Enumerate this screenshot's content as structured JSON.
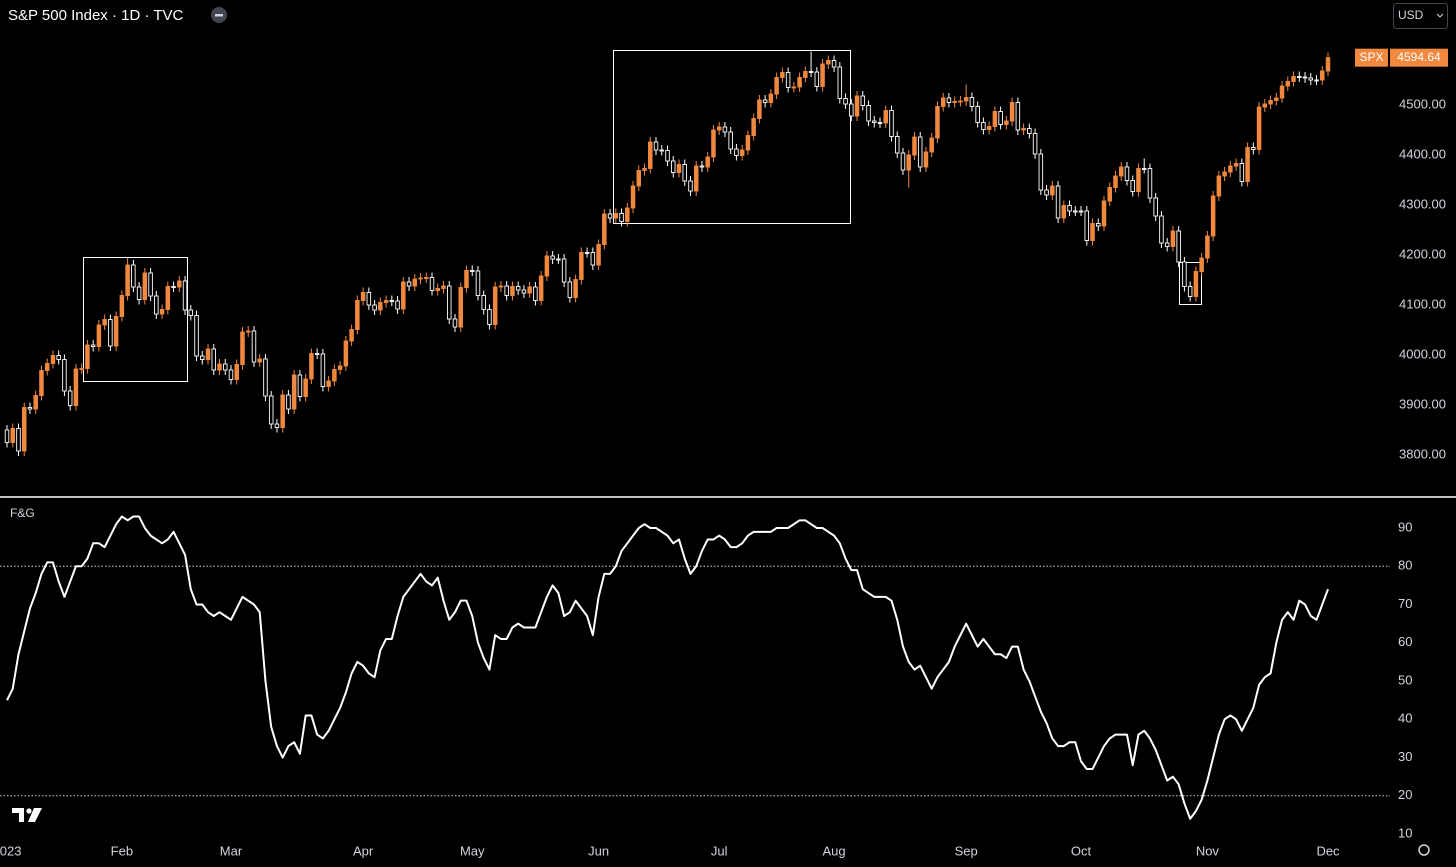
{
  "header": {
    "title": "S&P 500 Index · 1D · TVC",
    "currency": "USD"
  },
  "chart_data": [
    {
      "type": "candlestick",
      "name": "SPX",
      "last_label": "4594.64",
      "up_color": "#f0883e",
      "down_color": "#ffffff",
      "ylim": [
        3716,
        4710
      ],
      "yticks": [
        {
          "value": 3800,
          "label": "3800.00"
        },
        {
          "value": 3900,
          "label": "3900.00"
        },
        {
          "value": 4000,
          "label": "4000.00"
        },
        {
          "value": 4100,
          "label": "4100.00"
        },
        {
          "value": 4200,
          "label": "4200.00"
        },
        {
          "value": 4300,
          "label": "4300.00"
        },
        {
          "value": 4400,
          "label": "4400.00"
        },
        {
          "value": 4500,
          "label": "4500.00"
        }
      ],
      "x_labels": [
        {
          "value": 0,
          "label": "2023"
        },
        {
          "value": 20,
          "label": "Feb"
        },
        {
          "value": 39,
          "label": "Mar"
        },
        {
          "value": 62,
          "label": "Apr"
        },
        {
          "value": 81,
          "label": "May"
        },
        {
          "value": 103,
          "label": "Jun"
        },
        {
          "value": 124,
          "label": "Jul"
        },
        {
          "value": 144,
          "label": "Aug"
        },
        {
          "value": 167,
          "label": "Sep"
        },
        {
          "value": 187,
          "label": "Oct"
        },
        {
          "value": 209,
          "label": "Nov"
        },
        {
          "value": 230,
          "label": "Dec"
        }
      ],
      "open": [
        3850,
        3825,
        3853,
        3808,
        3895,
        3892,
        3919,
        3969,
        3983,
        3999,
        3991,
        3928,
        3899,
        3972,
        3973,
        4020,
        4017,
        4060,
        4071,
        4018,
        4077,
        4119,
        4180,
        4136,
        4111,
        4164,
        4118,
        4082,
        4091,
        4137,
        4136,
        4148,
        4090,
        4079,
        3998,
        3991,
        4012,
        3970,
        3982,
        3970,
        3951,
        3981,
        4046,
        4048,
        3986,
        3992,
        3918,
        3862,
        3855,
        3920,
        3892,
        3960,
        3917,
        3952,
        4003,
        4002,
        3937,
        3948,
        3971,
        3978,
        4028,
        4051,
        4109,
        4125,
        4100,
        4090,
        4105,
        4109,
        4108,
        4092,
        4146,
        4138,
        4152,
        4154,
        4155,
        4129,
        4133,
        4138,
        4072,
        4056,
        4135,
        4169,
        4168,
        4119,
        4091,
        4061,
        4136,
        4138,
        4119,
        4137,
        4130,
        4124,
        4136,
        4109,
        4158,
        4198,
        4192,
        4192,
        4146,
        4115,
        4151,
        4205,
        4205,
        4180,
        4221,
        4282,
        4274,
        4283,
        4267,
        4294,
        4338,
        4369,
        4373,
        4426,
        4410,
        4409,
        4388,
        4365,
        4381,
        4348,
        4328,
        4378,
        4376,
        4396,
        4450,
        4456,
        4446,
        4412,
        4399,
        4410,
        4439,
        4473,
        4510,
        4505,
        4522,
        4555,
        4565,
        4535,
        4536,
        4555,
        4567,
        4566,
        4537,
        4582,
        4589,
        4576,
        4513,
        4502,
        4478,
        4518,
        4499,
        4468,
        4465,
        4464,
        4489,
        4437,
        4404,
        4370,
        4400,
        4436,
        4376,
        4406,
        4434,
        4497,
        4514,
        4505,
        4507,
        4508,
        4515,
        4497,
        4465,
        4451,
        4457,
        4487,
        4461,
        4468,
        4505,
        4450,
        4453,
        4443,
        4402,
        4330,
        4320,
        4338,
        4274,
        4299,
        4288,
        4288,
        4288,
        4229,
        4263,
        4258,
        4308,
        4335,
        4358,
        4376,
        4349,
        4327,
        4373,
        4373,
        4314,
        4278,
        4224,
        4217,
        4248,
        4186,
        4137,
        4117,
        4167,
        4194,
        4238,
        4318,
        4358,
        4366,
        4378,
        4383,
        4347,
        4415,
        4411,
        4496,
        4502,
        4509,
        4514,
        4538,
        4547,
        4557,
        4556,
        4554,
        4550,
        4550,
        4568
      ],
      "high": [
        3860,
        3863,
        3863,
        3905,
        3905,
        3929,
        3979,
        3993,
        4009,
        4009,
        4001,
        3938,
        3982,
        3983,
        4030,
        4030,
        4070,
        4081,
        4081,
        4087,
        4129,
        4195,
        4190,
        4146,
        4174,
        4174,
        4128,
        4101,
        4147,
        4147,
        4158,
        4158,
        4100,
        4089,
        4008,
        4022,
        4022,
        3992,
        3992,
        3980,
        3991,
        4056,
        4058,
        4058,
        4002,
        4002,
        3928,
        3872,
        3930,
        3930,
        3970,
        3970,
        3962,
        4013,
        4013,
        4012,
        3958,
        3981,
        3988,
        4038,
        4061,
        4119,
        4135,
        4135,
        4110,
        4115,
        4119,
        4119,
        4118,
        4156,
        4156,
        4162,
        4164,
        4165,
        4165,
        4143,
        4148,
        4148,
        4082,
        4145,
        4179,
        4179,
        4178,
        4129,
        4101,
        4146,
        4148,
        4148,
        4147,
        4147,
        4140,
        4146,
        4146,
        4168,
        4208,
        4208,
        4202,
        4202,
        4156,
        4161,
        4215,
        4215,
        4215,
        4231,
        4292,
        4292,
        4293,
        4293,
        4304,
        4348,
        4379,
        4383,
        4436,
        4436,
        4420,
        4419,
        4398,
        4391,
        4391,
        4358,
        4388,
        4388,
        4406,
        4460,
        4466,
        4466,
        4456,
        4422,
        4420,
        4449,
        4483,
        4520,
        4520,
        4532,
        4565,
        4575,
        4575,
        4546,
        4565,
        4577,
        4607,
        4576,
        4592,
        4599,
        4599,
        4586,
        4523,
        4512,
        4528,
        4528,
        4509,
        4478,
        4475,
        4499,
        4499,
        4447,
        4414,
        4410,
        4446,
        4446,
        4416,
        4444,
        4507,
        4524,
        4524,
        4517,
        4518,
        4541,
        4525,
        4507,
        4475,
        4467,
        4497,
        4497,
        4478,
        4515,
        4515,
        4463,
        4463,
        4453,
        4412,
        4340,
        4348,
        4348,
        4309,
        4309,
        4298,
        4298,
        4298,
        4273,
        4273,
        4318,
        4345,
        4368,
        4386,
        4386,
        4359,
        4383,
        4393,
        4383,
        4324,
        4288,
        4234,
        4258,
        4258,
        4196,
        4147,
        4177,
        4204,
        4248,
        4328,
        4368,
        4376,
        4388,
        4393,
        4393,
        4425,
        4425,
        4506,
        4512,
        4519,
        4524,
        4548,
        4557,
        4567,
        4567,
        4566,
        4564,
        4560,
        4578,
        4605
      ],
      "low": [
        3815,
        3815,
        3798,
        3798,
        3882,
        3882,
        3909,
        3959,
        3973,
        3981,
        3918,
        3889,
        3889,
        3962,
        3963,
        4007,
        4007,
        4050,
        4008,
        4008,
        4067,
        4109,
        4126,
        4101,
        4101,
        4108,
        4072,
        4072,
        4081,
        4126,
        4126,
        4080,
        4069,
        3988,
        3981,
        3981,
        3960,
        3960,
        3960,
        3941,
        3941,
        3971,
        4036,
        3976,
        3976,
        3908,
        3852,
        3845,
        3845,
        3882,
        3882,
        3907,
        3907,
        3942,
        3992,
        3927,
        3927,
        3938,
        3961,
        3968,
        4018,
        4041,
        4099,
        4090,
        4080,
        4080,
        4095,
        4098,
        4082,
        4082,
        4128,
        4128,
        4142,
        4144,
        4119,
        4119,
        4123,
        4062,
        4046,
        4046,
        4125,
        4158,
        4109,
        4081,
        4051,
        4051,
        4126,
        4109,
        4109,
        4120,
        4114,
        4114,
        4099,
        4099,
        4148,
        4182,
        4182,
        4136,
        4105,
        4105,
        4141,
        4195,
        4170,
        4170,
        4211,
        4264,
        4264,
        4257,
        4257,
        4284,
        4328,
        4359,
        4363,
        4400,
        4399,
        4378,
        4355,
        4355,
        4338,
        4318,
        4318,
        4366,
        4366,
        4386,
        4440,
        4436,
        4402,
        4389,
        4389,
        4400,
        4429,
        4463,
        4495,
        4495,
        4512,
        4545,
        4525,
        4525,
        4526,
        4545,
        4556,
        4527,
        4527,
        4572,
        4566,
        4503,
        4492,
        4468,
        4468,
        4489,
        4458,
        4455,
        4454,
        4454,
        4427,
        4394,
        4360,
        4335,
        4390,
        4366,
        4366,
        4396,
        4424,
        4487,
        4495,
        4495,
        4497,
        4498,
        4487,
        4455,
        4441,
        4441,
        4447,
        4451,
        4451,
        4458,
        4440,
        4440,
        4433,
        4392,
        4320,
        4310,
        4310,
        4264,
        4264,
        4278,
        4278,
        4278,
        4219,
        4219,
        4248,
        4248,
        4298,
        4325,
        4348,
        4339,
        4317,
        4317,
        4363,
        4304,
        4268,
        4214,
        4207,
        4207,
        4176,
        4127,
        4107,
        4107,
        4157,
        4184,
        4228,
        4308,
        4348,
        4356,
        4368,
        4337,
        4337,
        4401,
        4401,
        4486,
        4492,
        4499,
        4504,
        4528,
        4537,
        4546,
        4544,
        4540,
        4540,
        4540,
        4558
      ],
      "close": [
        3825,
        3853,
        3808,
        3895,
        3892,
        3919,
        3969,
        3983,
        3999,
        3991,
        3928,
        3899,
        3972,
        3973,
        4020,
        4017,
        4060,
        4071,
        4018,
        4077,
        4119,
        4180,
        4136,
        4111,
        4164,
        4118,
        4082,
        4091,
        4137,
        4136,
        4148,
        4090,
        4079,
        3998,
        3991,
        4012,
        3970,
        3982,
        3970,
        3951,
        3981,
        4046,
        4048,
        3986,
        3992,
        3918,
        3862,
        3855,
        3920,
        3892,
        3960,
        3917,
        3952,
        4003,
        4002,
        3937,
        3948,
        3971,
        3978,
        4028,
        4051,
        4109,
        4125,
        4100,
        4090,
        4105,
        4109,
        4108,
        4092,
        4146,
        4138,
        4152,
        4154,
        4155,
        4129,
        4133,
        4138,
        4072,
        4056,
        4135,
        4169,
        4168,
        4119,
        4091,
        4061,
        4136,
        4138,
        4119,
        4137,
        4130,
        4124,
        4136,
        4109,
        4158,
        4198,
        4192,
        4192,
        4146,
        4115,
        4151,
        4205,
        4205,
        4180,
        4221,
        4282,
        4274,
        4283,
        4267,
        4294,
        4338,
        4369,
        4373,
        4426,
        4410,
        4409,
        4388,
        4365,
        4381,
        4348,
        4328,
        4378,
        4376,
        4396,
        4450,
        4456,
        4446,
        4412,
        4399,
        4410,
        4439,
        4473,
        4510,
        4505,
        4522,
        4555,
        4565,
        4535,
        4536,
        4555,
        4567,
        4566,
        4537,
        4582,
        4589,
        4576,
        4513,
        4502,
        4478,
        4518,
        4499,
        4468,
        4465,
        4464,
        4489,
        4437,
        4404,
        4370,
        4400,
        4436,
        4376,
        4406,
        4434,
        4497,
        4514,
        4505,
        4507,
        4508,
        4515,
        4497,
        4465,
        4451,
        4457,
        4487,
        4461,
        4468,
        4505,
        4450,
        4453,
        4443,
        4402,
        4330,
        4320,
        4338,
        4274,
        4299,
        4288,
        4288,
        4288,
        4229,
        4263,
        4258,
        4308,
        4335,
        4358,
        4376,
        4349,
        4327,
        4373,
        4373,
        4314,
        4278,
        4224,
        4217,
        4248,
        4186,
        4137,
        4117,
        4167,
        4194,
        4238,
        4318,
        4358,
        4366,
        4378,
        4383,
        4347,
        4415,
        4411,
        4496,
        4502,
        4509,
        4514,
        4538,
        4547,
        4557,
        4556,
        4554,
        4550,
        4550,
        4568,
        4594.64
      ]
    },
    {
      "type": "line",
      "title": "F&G",
      "ylim": [
        2.7,
        98.1
      ],
      "yticks": [
        10,
        20,
        30,
        40,
        50,
        60,
        70,
        80,
        90
      ],
      "levels": [
        80,
        20
      ],
      "series": [
        {
          "color": "#ffffff",
          "values": [
            45,
            48,
            57,
            63,
            69,
            73,
            78,
            81,
            81,
            76,
            72,
            76,
            80,
            80,
            82,
            86,
            86,
            85,
            88,
            91,
            93,
            92,
            93,
            93,
            90,
            88,
            87,
            86,
            87,
            89,
            86,
            83,
            74,
            70,
            70,
            68,
            67,
            68,
            67,
            66,
            69,
            72,
            71,
            70,
            68,
            50,
            38,
            33,
            30,
            33,
            34,
            31,
            41,
            41,
            36,
            35,
            37,
            40,
            43,
            47,
            52,
            55,
            54,
            52,
            51,
            58,
            61,
            61,
            67,
            72,
            74,
            76,
            78,
            76,
            75,
            77,
            71,
            66,
            68,
            71,
            71,
            67,
            60,
            56,
            53,
            62,
            61,
            61,
            64,
            65,
            64,
            64,
            64,
            68,
            72,
            75,
            73,
            67,
            68,
            71,
            69,
            67,
            62,
            72,
            78,
            78,
            80,
            84,
            86,
            88,
            90,
            91,
            90,
            90,
            89,
            88,
            86,
            87,
            82,
            78,
            80,
            84,
            87,
            87,
            88,
            87,
            85,
            85,
            86,
            88,
            89,
            89,
            89,
            89,
            90,
            90,
            90,
            91,
            92,
            92,
            91,
            90,
            90,
            89,
            88,
            86,
            82,
            79,
            79,
            74,
            73,
            72,
            72,
            72,
            71,
            66,
            59,
            55,
            53,
            54,
            51,
            48,
            51,
            53,
            55,
            59,
            62,
            65,
            62,
            59,
            61,
            59,
            57,
            57,
            56,
            59,
            59,
            53,
            50,
            46,
            42,
            39,
            35,
            33,
            33,
            34,
            34,
            29,
            27,
            27,
            30,
            33,
            35,
            36,
            36,
            36,
            28,
            36,
            37,
            35,
            32,
            28,
            24,
            25,
            23,
            18,
            14,
            16,
            19,
            24,
            30,
            36,
            40,
            41,
            40,
            37,
            40,
            43,
            49,
            51,
            52,
            60,
            66,
            68,
            66,
            71,
            70,
            67,
            66,
            70,
            74
          ]
        }
      ]
    }
  ]
}
